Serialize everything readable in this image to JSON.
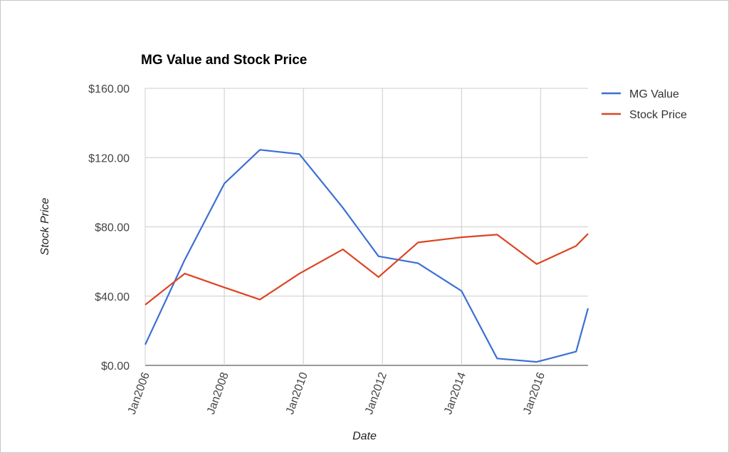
{
  "chart_data": {
    "type": "line",
    "title": "MG Value and Stock Price",
    "xlabel": "Date",
    "ylabel": "Stock Price",
    "x": [
      2006.0,
      2007.0,
      2008.0,
      2008.9,
      2009.9,
      2011.0,
      2011.9,
      2012.9,
      2014.0,
      2014.9,
      2015.9,
      2016.9,
      2017.2
    ],
    "x_ticks": [
      "Jan2006",
      "Jan2008",
      "Jan2010",
      "Jan2012",
      "Jan2014",
      "Jan2016"
    ],
    "x_tick_values": [
      2006,
      2008,
      2010,
      2012,
      2014,
      2016
    ],
    "xlim": [
      2006,
      2017.2
    ],
    "y_ticks": [
      "$0.00",
      "$40.00",
      "$80.00",
      "$120.00",
      "$160.00"
    ],
    "y_tick_values": [
      0,
      40,
      80,
      120,
      160
    ],
    "ylim": [
      0,
      160
    ],
    "grid": true,
    "legend_position": "right",
    "series": [
      {
        "name": "MG Value",
        "color": "#3b6fd4",
        "values": [
          12,
          61,
          105,
          124.5,
          122,
          91,
          63,
          59,
          43,
          4,
          2,
          8,
          33
        ]
      },
      {
        "name": "Stock Price",
        "color": "#dc4522",
        "values": [
          35,
          53,
          45,
          38,
          53,
          67,
          51,
          71,
          74,
          75.5,
          58.5,
          69,
          76
        ]
      }
    ]
  }
}
